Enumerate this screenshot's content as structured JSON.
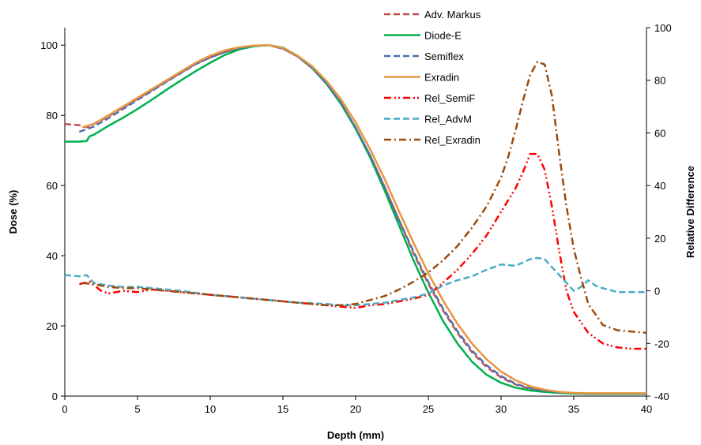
{
  "chart_data": {
    "type": "line",
    "xlabel": "Depth (mm)",
    "ylabel": "Dose (%)",
    "y2label": "Relative Difference",
    "xlim": [
      0,
      40
    ],
    "ylim": [
      0,
      105
    ],
    "y2lim": [
      -40,
      100
    ],
    "x_ticks": [
      0,
      5,
      10,
      15,
      20,
      25,
      30,
      35,
      40
    ],
    "y_ticks": [
      0,
      20,
      40,
      60,
      80,
      100
    ],
    "y2_ticks": [
      -40,
      -20,
      0,
      20,
      40,
      60,
      80,
      100
    ],
    "grid": false,
    "legend_position": "top-right",
    "series": [
      {
        "name": "Adv. Markus",
        "axis": "left",
        "color": "#c0504d",
        "dash": "dashed",
        "x": [
          0,
          1,
          1.5,
          2,
          3,
          4,
          5,
          6,
          7,
          8,
          9,
          10,
          11,
          12,
          13,
          14,
          15,
          16,
          17,
          18,
          19,
          20,
          21,
          22,
          23,
          24,
          25,
          26,
          27,
          28,
          29,
          30,
          31,
          32,
          33,
          34,
          35,
          36,
          38,
          40
        ],
        "y": [
          77.5,
          77.2,
          76.6,
          77.5,
          79.7,
          82.2,
          84.7,
          87.2,
          89.7,
          92.2,
          94.7,
          96.5,
          98,
          99.2,
          99.8,
          100,
          99,
          96.8,
          93.5,
          89,
          83.5,
          76.5,
          68.5,
          59.5,
          50,
          40.5,
          32,
          24.5,
          18,
          12.5,
          8.3,
          5.3,
          3.3,
          2.1,
          1.4,
          1,
          0.8,
          0.7,
          0.7,
          0.7
        ]
      },
      {
        "name": "Diode-E",
        "axis": "left",
        "color": "#00b050",
        "dash": "solid",
        "x": [
          0,
          1,
          1.5,
          1.7,
          2,
          3,
          4,
          5,
          6,
          7,
          8,
          9,
          10,
          11,
          12,
          13,
          14,
          15,
          16,
          17,
          18,
          19,
          20,
          21,
          22,
          23,
          24,
          25,
          26,
          27,
          28,
          29,
          30,
          31,
          32,
          33,
          34,
          35,
          36,
          38,
          40
        ],
        "y": [
          72.5,
          72.5,
          72.7,
          74,
          74.5,
          77,
          79.3,
          81.8,
          84.5,
          87.3,
          90,
          92.6,
          95,
          97.2,
          98.8,
          99.7,
          100,
          99.3,
          97,
          93.5,
          89,
          83.2,
          76.2,
          68,
          58.5,
          48.5,
          38.5,
          29.5,
          21.5,
          15,
          9.8,
          6.1,
          3.8,
          2.4,
          1.6,
          1.2,
          0.9,
          0.7,
          0.6,
          0.6,
          0.6
        ]
      },
      {
        "name": "Semiflex",
        "axis": "left",
        "color": "#4f6fb0",
        "dash": "dashed",
        "x": [
          1,
          2,
          3,
          4,
          5,
          6,
          7,
          8,
          9,
          10,
          11,
          12,
          13,
          14,
          15,
          16,
          17,
          18,
          19,
          20,
          21,
          22,
          23,
          24,
          25,
          26,
          27,
          28,
          29,
          30,
          31,
          32,
          33,
          34,
          35,
          36,
          38,
          40
        ],
        "y": [
          75.3,
          76.8,
          79.2,
          81.8,
          84.4,
          87,
          89.6,
          92.1,
          94.6,
          96.5,
          98,
          99.2,
          99.8,
          100,
          99,
          96.8,
          93.5,
          89,
          83.5,
          76.5,
          68.5,
          59.5,
          50,
          41,
          32.5,
          25,
          18.5,
          13,
          8.8,
          5.7,
          3.5,
          2.2,
          1.5,
          1.1,
          0.8,
          0.7,
          0.7,
          0.7
        ]
      },
      {
        "name": "Exradin",
        "axis": "left",
        "color": "#e8953f",
        "dash": "solid",
        "x": [
          1.2,
          2,
          3,
          4,
          5,
          6,
          7,
          8,
          9,
          10,
          11,
          12,
          13,
          14,
          15,
          16,
          17,
          18,
          19,
          20,
          21,
          22,
          23,
          24,
          25,
          26,
          27,
          28,
          29,
          30,
          31,
          32,
          33,
          34,
          35,
          36,
          38,
          40
        ],
        "y": [
          76.6,
          77.6,
          80,
          82.5,
          85,
          87.5,
          90,
          92.5,
          95,
          97,
          98.5,
          99.4,
          99.9,
          100,
          99.2,
          97,
          94,
          89.8,
          84.5,
          78,
          70.3,
          61.8,
          52.5,
          43.5,
          35,
          27.3,
          20.6,
          15,
          10.5,
          7,
          4.5,
          2.8,
          1.8,
          1.2,
          0.9,
          0.8,
          0.8,
          0.8
        ]
      },
      {
        "name": "Rel_SemiF",
        "axis": "right",
        "color": "#ff0000",
        "dash": "dash-dot-dot",
        "x": [
          1,
          1.7,
          2.5,
          3,
          4,
          5,
          6,
          8,
          10,
          12,
          14,
          16,
          18,
          19,
          20,
          21,
          22,
          23,
          24,
          25,
          26,
          27,
          28,
          29,
          30,
          31,
          31.5,
          32,
          32.5,
          33,
          33.5,
          34,
          34.5,
          35,
          35.5,
          36,
          37,
          38,
          39,
          40
        ],
        "y": [
          2.5,
          3.5,
          0,
          -1,
          0,
          -0.5,
          0.5,
          -0.5,
          -1.5,
          -2.5,
          -3.5,
          -4.5,
          -5.5,
          -6,
          -6.5,
          -5.5,
          -5,
          -4,
          -3,
          -1.5,
          3,
          8,
          14,
          21,
          30,
          39,
          45,
          52,
          52,
          46,
          32,
          15,
          0,
          -8,
          -12,
          -16,
          -20,
          -21.5,
          -22,
          -22
        ]
      },
      {
        "name": "Rel_AdvM",
        "axis": "right",
        "color": "#4bacc6",
        "dash": "dashed",
        "x": [
          0,
          1,
          1.5,
          2,
          3,
          4,
          5,
          6,
          8,
          10,
          12,
          14,
          16,
          18,
          19,
          20,
          21,
          22,
          23,
          24,
          25,
          26,
          27,
          28,
          29,
          30,
          31,
          32,
          32.5,
          33,
          34,
          35,
          35.5,
          36,
          36.5,
          37,
          38,
          39,
          40
        ],
        "y": [
          6,
          5.5,
          6,
          3,
          2,
          1.5,
          1.5,
          1,
          0,
          -1.5,
          -2.5,
          -3.5,
          -4.5,
          -5,
          -5.5,
          -5.5,
          -5,
          -4.5,
          -3.5,
          -2.5,
          -1,
          2,
          4,
          5.5,
          8,
          10,
          9.5,
          12,
          12.5,
          12,
          6,
          0,
          1.5,
          4,
          2,
          1,
          -0.5,
          -0.5,
          -0.5
        ]
      },
      {
        "name": "Rel_Exradin",
        "axis": "right",
        "color": "#9c4a0b",
        "dash": "dash-dot",
        "x": [
          1.2,
          2,
          3,
          4,
          5,
          6,
          8,
          10,
          12,
          14,
          16,
          18,
          19,
          20,
          21,
          22,
          23,
          24,
          25,
          26,
          27,
          28,
          29,
          30,
          30.5,
          31,
          31.5,
          32,
          32.5,
          33,
          33.5,
          34,
          34.5,
          35,
          35.5,
          36,
          37,
          38,
          39,
          40
        ],
        "y": [
          3,
          2.5,
          1.5,
          1,
          1,
          0.5,
          -0.5,
          -1.5,
          -2.5,
          -3.5,
          -4.5,
          -5.5,
          -5.5,
          -5,
          -3.5,
          -2,
          0.5,
          3.5,
          7,
          11.5,
          17,
          24,
          32,
          43,
          51,
          61,
          72,
          82,
          87,
          86,
          74,
          52,
          32,
          16,
          5,
          -5,
          -13,
          -15,
          -15.5,
          -16
        ]
      }
    ]
  }
}
